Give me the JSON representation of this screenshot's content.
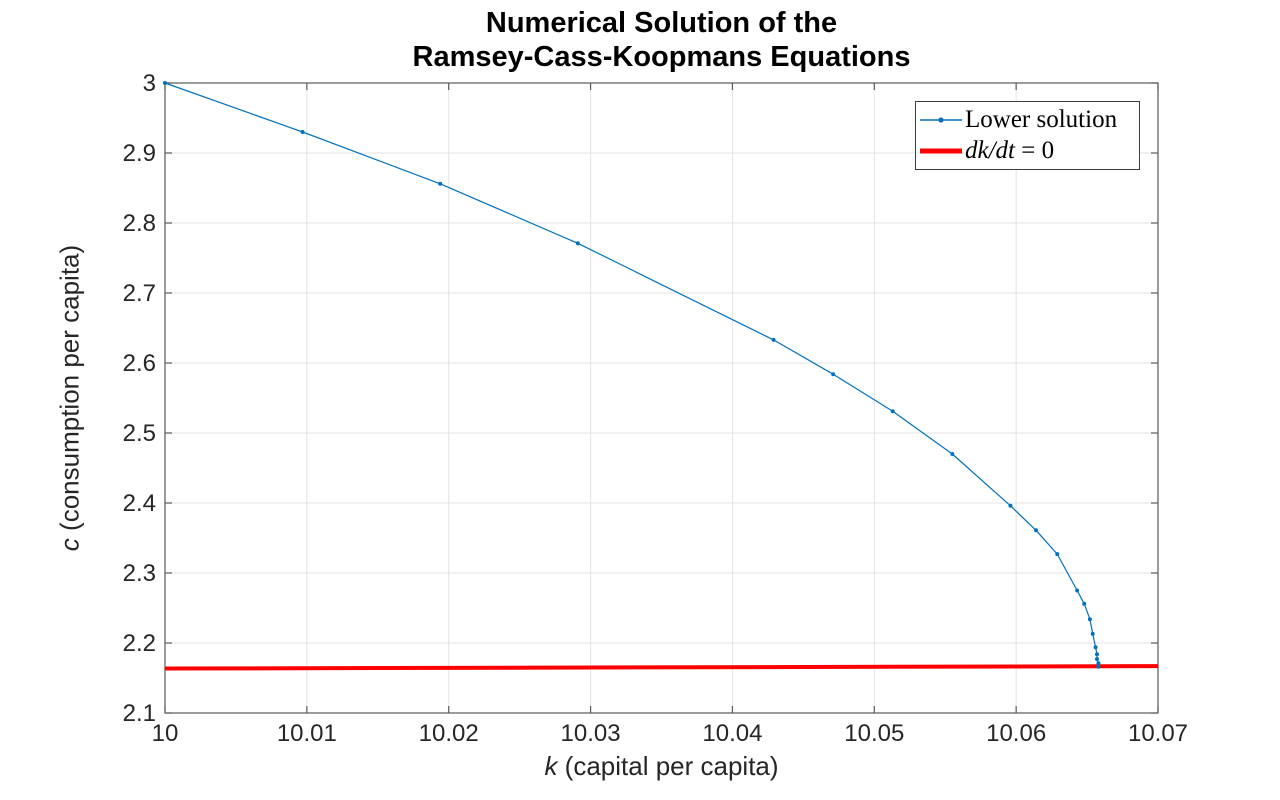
{
  "figure": {
    "title_line1": "Numerical Solution of the",
    "title_line2": "Ramsey-Cass-Koopmans Equations",
    "xlabel_var": "k",
    "xlabel_rest": " (capital per capita)",
    "ylabel_var": "c",
    "ylabel_rest": " (consumption per capita)"
  },
  "legend": {
    "items": [
      {
        "label": "Lower solution",
        "color": "#0072BD",
        "style": "thin-line-with-dot-marker"
      },
      {
        "label_math": "dk/dt",
        "label_rest": " = 0",
        "color": "#ff0000",
        "style": "thick-line"
      }
    ]
  },
  "colors": {
    "lower_solution_blue": "#0072BD",
    "dkdt_red": "#ff0000",
    "grid": "#e3e3e3",
    "axis_box": "#595959",
    "tick_text": "#262626"
  },
  "chart_data": {
    "type": "line",
    "title": "Numerical Solution of the Ramsey-Cass-Koopmans Equations",
    "xlabel": "k (capital per capita)",
    "ylabel": "c (consumption per capita)",
    "xlim": [
      10,
      10.07
    ],
    "ylim": [
      2.1,
      3.0
    ],
    "grid": true,
    "legend_position": "northeast",
    "xticks": [
      10,
      10.01,
      10.02,
      10.03,
      10.04,
      10.05,
      10.06,
      10.07
    ],
    "xtick_labels": [
      "10",
      "10.01",
      "10.02",
      "10.03",
      "10.04",
      "10.05",
      "10.06",
      "10.07"
    ],
    "yticks": [
      2.1,
      2.2,
      2.3,
      2.4,
      2.5,
      2.6,
      2.7,
      2.8,
      2.9,
      3
    ],
    "ytick_labels": [
      "2.1",
      "2.2",
      "2.3",
      "2.4",
      "2.5",
      "2.6",
      "2.7",
      "2.8",
      "2.9",
      "3"
    ],
    "series": [
      {
        "name": "dk/dt = 0",
        "color": "#ff0000",
        "line_width": 4,
        "marker": "none",
        "points": [
          [
            10.0,
            2.1635
          ],
          [
            10.07,
            2.167
          ]
        ]
      },
      {
        "name": "Lower solution",
        "color": "#0072BD",
        "line_width": 1.2,
        "marker": "point",
        "points": [
          [
            10.0,
            3.0
          ],
          [
            10.0097,
            2.93
          ],
          [
            10.0194,
            2.856
          ],
          [
            10.0291,
            2.771
          ],
          [
            10.0429,
            2.633
          ],
          [
            10.0471,
            2.584
          ],
          [
            10.0513,
            2.531
          ],
          [
            10.0555,
            2.47
          ],
          [
            10.0596,
            2.396
          ],
          [
            10.0614,
            2.361
          ],
          [
            10.0629,
            2.327
          ],
          [
            10.0643,
            2.275
          ],
          [
            10.0648,
            2.256
          ],
          [
            10.0652,
            2.234
          ],
          [
            10.0654,
            2.213
          ],
          [
            10.0656,
            2.194
          ],
          [
            10.0657,
            2.184
          ],
          [
            10.0657,
            2.177
          ],
          [
            10.0658,
            2.171
          ],
          [
            10.0658,
            2.166
          ]
        ]
      }
    ]
  }
}
